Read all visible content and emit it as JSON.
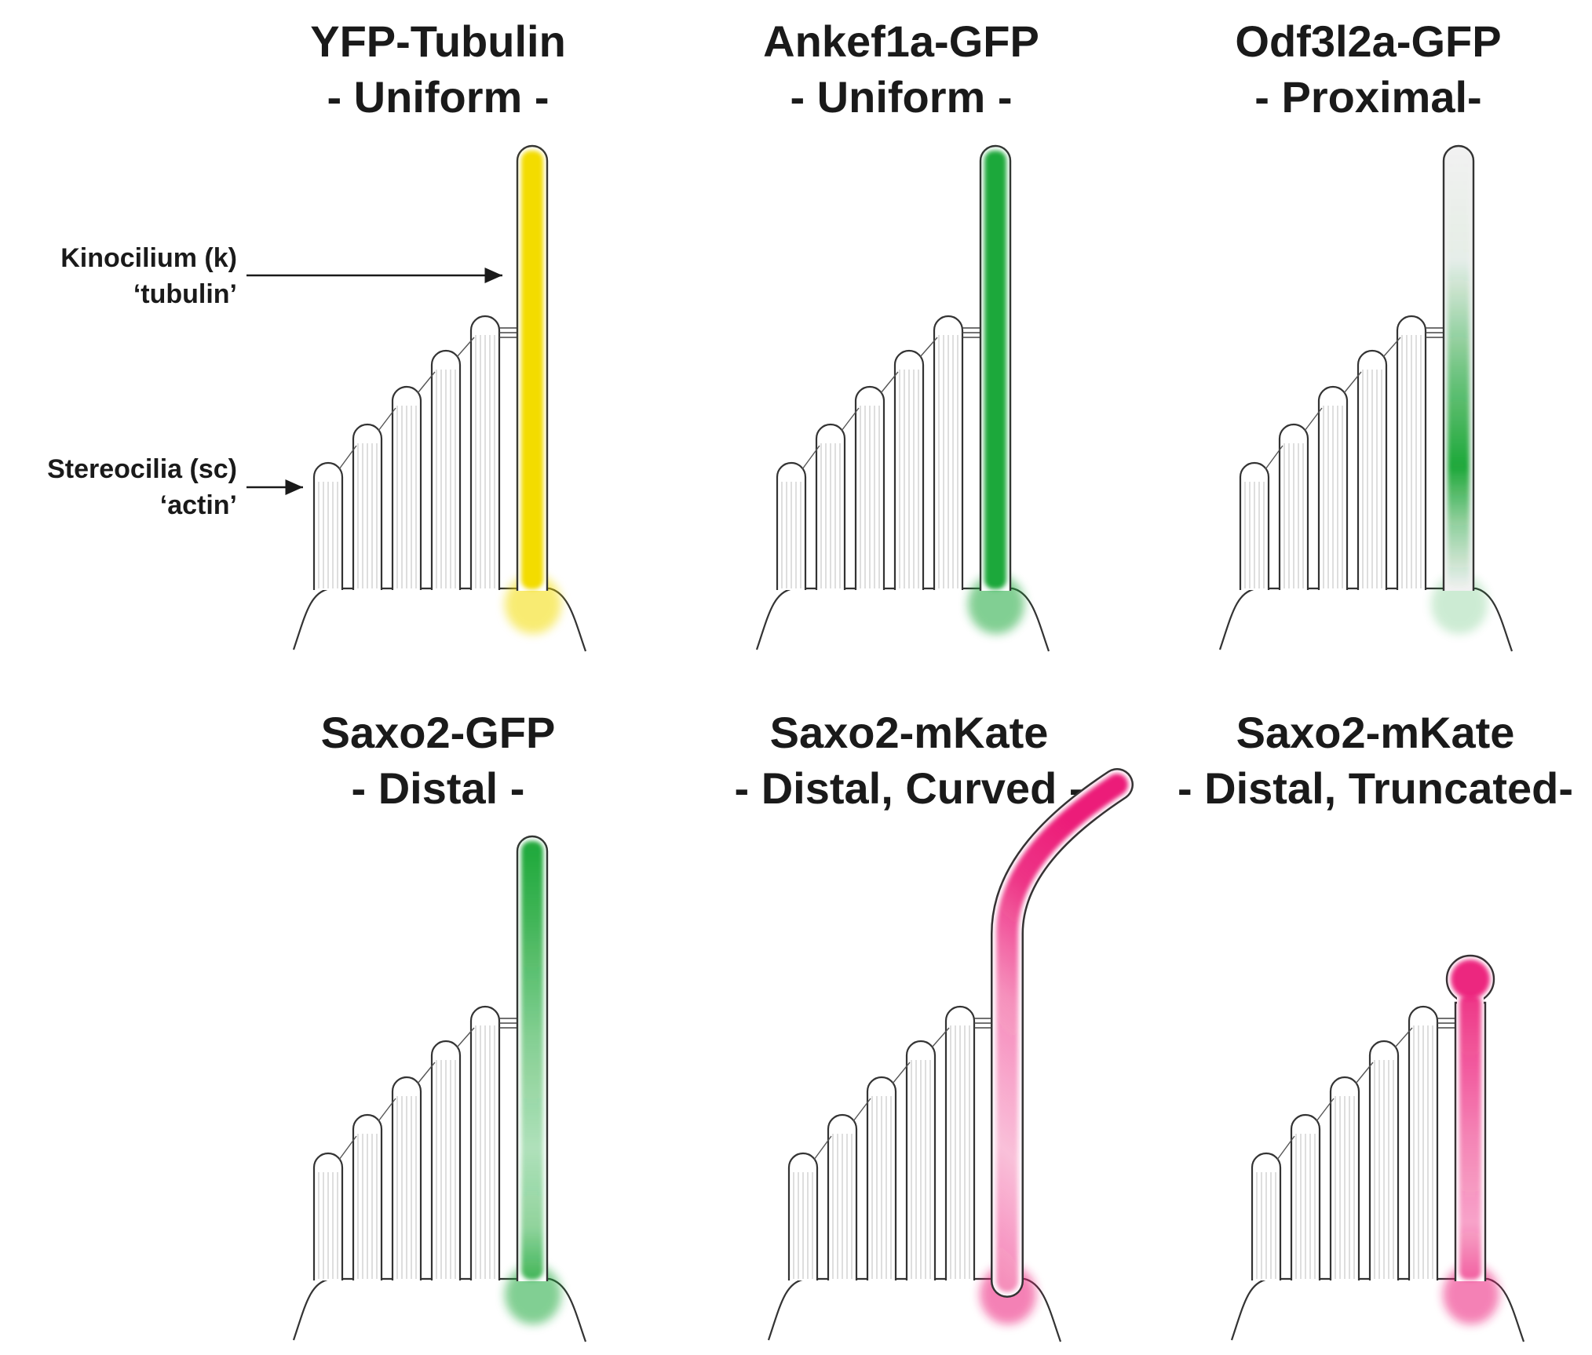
{
  "annotations": {
    "kinocilium_label": "Kinocilium (k)",
    "kinocilium_sub": "‘tubulin’",
    "stereocilia_label": "Stereocilia (sc)",
    "stereocilia_sub": "‘actin’"
  },
  "panels": [
    {
      "title": "YFP-Tubulin",
      "subtitle": "- Uniform -",
      "pattern": "uniform",
      "shape": "straight",
      "color": "#f3dc00"
    },
    {
      "title": "Ankef1a-GFP",
      "subtitle": "- Uniform -",
      "pattern": "uniform",
      "shape": "straight",
      "color": "#1fa83a"
    },
    {
      "title": "Odf3l2a-GFP",
      "subtitle": "- Proximal-",
      "pattern": "proximal",
      "shape": "straight",
      "color": "#1fa83a"
    },
    {
      "title": "Saxo2-GFP",
      "subtitle": "- Distal -",
      "pattern": "distal",
      "shape": "straight",
      "color": "#1fa83a"
    },
    {
      "title": "Saxo2-mKate",
      "subtitle": "- Distal, Curved -",
      "pattern": "distal",
      "shape": "curved",
      "color": "#ec1e79"
    },
    {
      "title": "Saxo2-mKate",
      "subtitle": "- Distal, Truncated-",
      "pattern": "distal",
      "shape": "truncated",
      "color": "#ec1e79"
    }
  ]
}
